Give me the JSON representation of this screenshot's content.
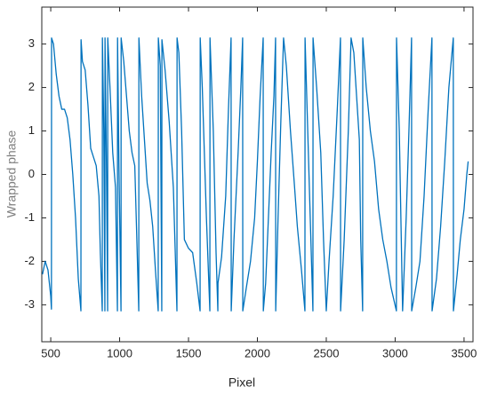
{
  "chart_data": {
    "type": "line",
    "xlabel": "Pixel",
    "ylabel": "Wrapped phase",
    "x": [
      440,
      460,
      480,
      500,
      505,
      506,
      520,
      540,
      560,
      580,
      600,
      620,
      640,
      660,
      680,
      700,
      719,
      720,
      730,
      750,
      770,
      790,
      810,
      830,
      850,
      860,
      874,
      875,
      885,
      893,
      894,
      905,
      913,
      914,
      930,
      950,
      970,
      984,
      985,
      995,
      1010,
      1011,
      1030,
      1050,
      1070,
      1090,
      1110,
      1125,
      1139,
      1140,
      1160,
      1180,
      1200,
      1220,
      1240,
      1260,
      1280,
      1281,
      1295,
      1306,
      1307,
      1330,
      1360,
      1390,
      1416,
      1417,
      1430,
      1450,
      1470,
      1500,
      1530,
      1560,
      1584,
      1585,
      1600,
      1630,
      1655,
      1656,
      1680,
      1700,
      1713,
      1714,
      1740,
      1770,
      1790,
      1809,
      1810,
      1830,
      1860,
      1880,
      1893,
      1894,
      1920,
      1950,
      1980,
      2000,
      2020,
      2042,
      2043,
      2060,
      2080,
      2100,
      2120,
      2132,
      2133,
      2150,
      2170,
      2190,
      2210,
      2240,
      2270,
      2290,
      2320,
      2345,
      2346,
      2370,
      2403,
      2404,
      2430,
      2460,
      2480,
      2500,
      2520,
      2550,
      2580,
      2603,
      2604,
      2630,
      2660,
      2680,
      2700,
      2720,
      2740,
      2750,
      2764,
      2765,
      2790,
      2820,
      2850,
      2880,
      2910,
      2940,
      2970,
      3009,
      3010,
      3030,
      3054,
      3080,
      3100,
      3119,
      3120,
      3150,
      3180,
      3210,
      3240,
      3267,
      3268,
      3300,
      3330,
      3360,
      3390,
      3422,
      3423,
      3450,
      3473,
      3500,
      3520,
      3530
    ],
    "series": [
      {
        "color": "#0072bd",
        "values": [
          -2.3,
          -2.0,
          -2.2,
          -2.8,
          -3.1,
          3.14,
          3.0,
          2.3,
          1.8,
          1.5,
          1.5,
          1.3,
          0.8,
          0.0,
          -1.0,
          -2.4,
          -3.14,
          3.1,
          2.6,
          2.4,
          1.6,
          0.6,
          0.4,
          0.2,
          -0.5,
          -1.8,
          -3.14,
          3.14,
          1.0,
          -3.14,
          3.14,
          0.0,
          -3.14,
          3.14,
          2.0,
          0.5,
          -0.3,
          -3.14,
          3.14,
          0.2,
          -3.14,
          3.14,
          2.6,
          1.8,
          1.0,
          0.5,
          0.2,
          -1.5,
          -3.14,
          3.14,
          1.8,
          0.8,
          -0.2,
          -0.6,
          -1.2,
          -2.2,
          -3.14,
          3.14,
          2.5,
          -3.14,
          3.1,
          2.4,
          1.2,
          -0.3,
          -3.14,
          3.14,
          2.8,
          1.0,
          -1.5,
          -1.7,
          -1.8,
          -2.5,
          -3.14,
          3.14,
          2.0,
          -1.0,
          -3.14,
          3.14,
          1.0,
          -1.8,
          -3.14,
          -2.5,
          -1.9,
          -0.5,
          1.5,
          3.14,
          -3.14,
          -1.5,
          0.5,
          2.0,
          3.14,
          -3.14,
          -2.6,
          -2.0,
          -1.0,
          0.3,
          1.8,
          3.14,
          -3.14,
          -2.5,
          -1.0,
          0.5,
          1.8,
          3.14,
          -3.14,
          -1.0,
          1.2,
          3.14,
          2.5,
          1.0,
          -0.3,
          -1.2,
          -2.2,
          -3.14,
          3.14,
          0.5,
          -3.14,
          3.14,
          2.0,
          0.5,
          -1.5,
          -3.14,
          -2.0,
          -0.5,
          1.5,
          3.14,
          -3.14,
          -1.5,
          1.0,
          3.14,
          2.8,
          1.8,
          0.8,
          -1.5,
          -3.14,
          3.14,
          2.0,
          1.0,
          0.3,
          -0.8,
          -1.5,
          -2.0,
          -2.6,
          -3.14,
          3.14,
          1.0,
          -3.14,
          -1.0,
          1.0,
          3.14,
          -3.14,
          -2.6,
          -2.0,
          -0.5,
          1.5,
          3.14,
          -3.14,
          -2.4,
          -1.2,
          0.3,
          2.0,
          3.14,
          -3.14,
          -2.3,
          -1.5,
          -0.8,
          0.0,
          0.3
        ]
      }
    ],
    "xlim": [
      435,
      3565
    ],
    "xticks": [
      500,
      1000,
      1500,
      2000,
      2500,
      3000,
      3500
    ],
    "ylim": [
      -3.85,
      3.85
    ],
    "yticks": [
      -3,
      -2,
      -1,
      0,
      1,
      2,
      3
    ],
    "grid": false
  }
}
